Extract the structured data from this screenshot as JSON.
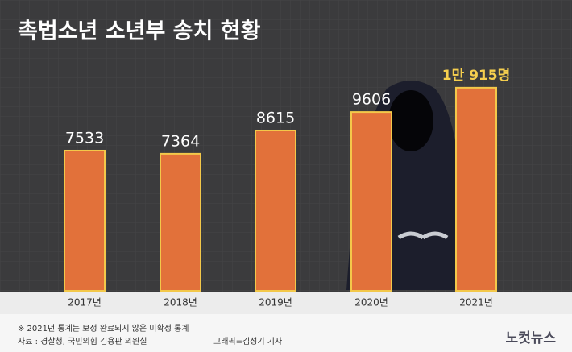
{
  "chart_data": {
    "type": "bar",
    "title": "촉법소년 소년부 송치 현황",
    "categories": [
      "2017년",
      "2018년",
      "2019년",
      "2020년",
      "2021년"
    ],
    "values": [
      7533,
      7364,
      8615,
      9606,
      10915
    ],
    "value_labels": [
      "7533",
      "7364",
      "8615",
      "9606",
      "1만 915명"
    ],
    "color": "#e2713a",
    "note": "※ 2021년 통계는 보정 완료되지 않은 미확정 통계",
    "source": "자료 : 경찰청, 국민의힘 김용판 의원실",
    "credit": "그래픽=김성기 기자",
    "logo": "노컷뉴스"
  }
}
